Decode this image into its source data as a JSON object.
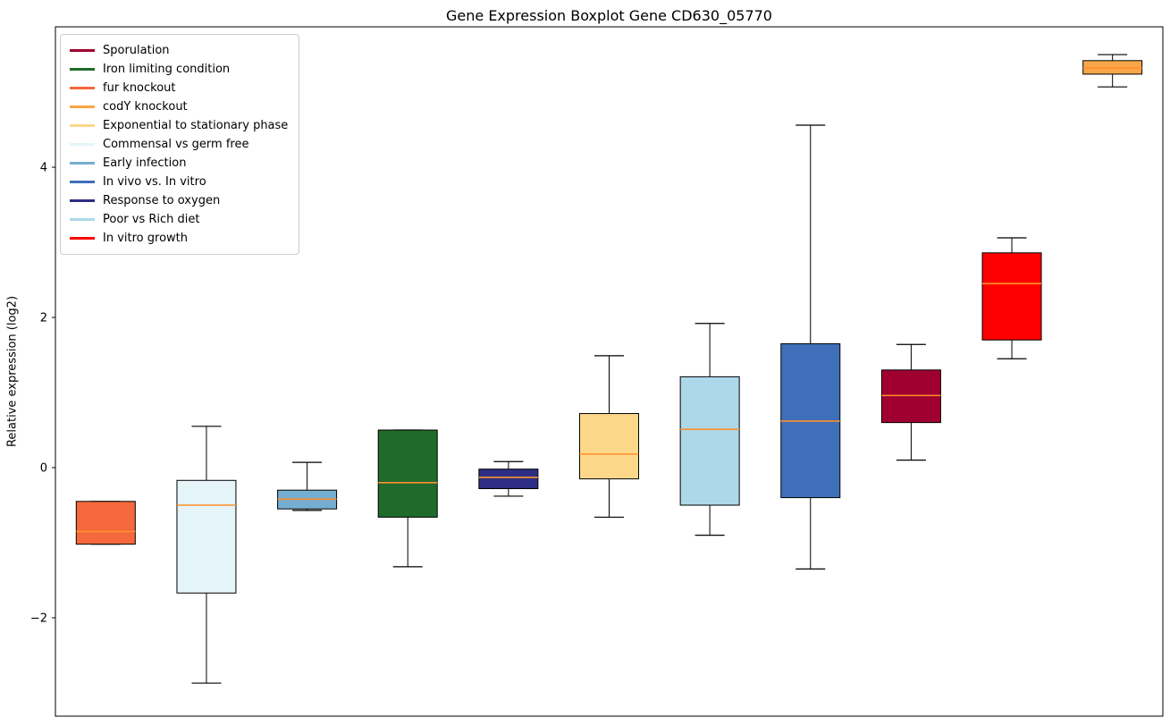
{
  "chart_data": {
    "type": "boxplot",
    "title": "Gene Expression Boxplot Gene CD630_05770",
    "ylabel": "Relative expression (log2)",
    "xlabel": "",
    "grid": false,
    "legend_position": "upper left",
    "ylim": [
      -3.31,
      5.87
    ],
    "yticks": [
      -2,
      0,
      2,
      4
    ],
    "ytick_labels": [
      "−2",
      "0",
      "2",
      "4"
    ],
    "median_color": "#ff8f2a",
    "box_edge_color": "#000000",
    "whisker_color": "#000000",
    "legend": [
      {
        "label": "Sporulation",
        "color": "#a00030"
      },
      {
        "label": "Iron limiting condition",
        "color": "#206b2b"
      },
      {
        "label": "fur knockout",
        "color": "#f5693d"
      },
      {
        "label": "codY knockout",
        "color": "#f9a64a"
      },
      {
        "label": "Exponential to stationary phase",
        "color": "#fdd88a"
      },
      {
        "label": "Commensal vs germ free",
        "color": "#e4f4f9"
      },
      {
        "label": "Early infection",
        "color": "#76aed2"
      },
      {
        "label": "In vivo vs. In vitro",
        "color": "#3f6fb8"
      },
      {
        "label": "Response to oxygen",
        "color": "#2d2e83"
      },
      {
        "label": "Poor vs Rich diet",
        "color": "#add8ea"
      },
      {
        "label": "In vitro growth",
        "color": "#fe0000"
      }
    ],
    "boxes": [
      {
        "name": "fur knockout",
        "color": "#f5693d",
        "whisker_low": -1.02,
        "q1": -1.02,
        "median": -0.85,
        "q3": -0.45,
        "whisker_high": -0.45
      },
      {
        "name": "Commensal vs germ free",
        "color": "#e4f4f9",
        "whisker_low": -2.87,
        "q1": -1.67,
        "median": -0.5,
        "q3": -0.17,
        "whisker_high": 0.55
      },
      {
        "name": "Early infection",
        "color": "#76aed2",
        "whisker_low": -0.57,
        "q1": -0.55,
        "median": -0.42,
        "q3": -0.3,
        "whisker_high": 0.07
      },
      {
        "name": "Iron limiting condition",
        "color": "#206b2b",
        "whisker_low": -1.32,
        "q1": -0.66,
        "median": -0.2,
        "q3": 0.5,
        "whisker_high": 0.5
      },
      {
        "name": "Response to oxygen",
        "color": "#2d2e83",
        "whisker_low": -0.38,
        "q1": -0.28,
        "median": -0.13,
        "q3": -0.02,
        "whisker_high": 0.08
      },
      {
        "name": "Exponential to stationary phase",
        "color": "#fdd88a",
        "whisker_low": -0.66,
        "q1": -0.15,
        "median": 0.18,
        "q3": 0.72,
        "whisker_high": 1.49
      },
      {
        "name": "Poor vs Rich diet",
        "color": "#add8ea",
        "whisker_low": -0.9,
        "q1": -0.5,
        "median": 0.51,
        "q3": 1.21,
        "whisker_high": 1.92
      },
      {
        "name": "In vivo vs. In vitro",
        "color": "#3f6fb8",
        "whisker_low": -1.35,
        "q1": -0.4,
        "median": 0.62,
        "q3": 1.65,
        "whisker_high": 4.56
      },
      {
        "name": "Sporulation",
        "color": "#a00030",
        "whisker_low": 0.1,
        "q1": 0.6,
        "median": 0.96,
        "q3": 1.3,
        "whisker_high": 1.64
      },
      {
        "name": "In vitro growth",
        "color": "#fe0000",
        "whisker_low": 1.45,
        "q1": 1.7,
        "median": 2.45,
        "q3": 2.86,
        "whisker_high": 3.06
      },
      {
        "name": "codY knockout",
        "color": "#f9a64a",
        "whisker_low": 5.07,
        "q1": 5.24,
        "median": 5.32,
        "q3": 5.42,
        "whisker_high": 5.5
      }
    ]
  }
}
